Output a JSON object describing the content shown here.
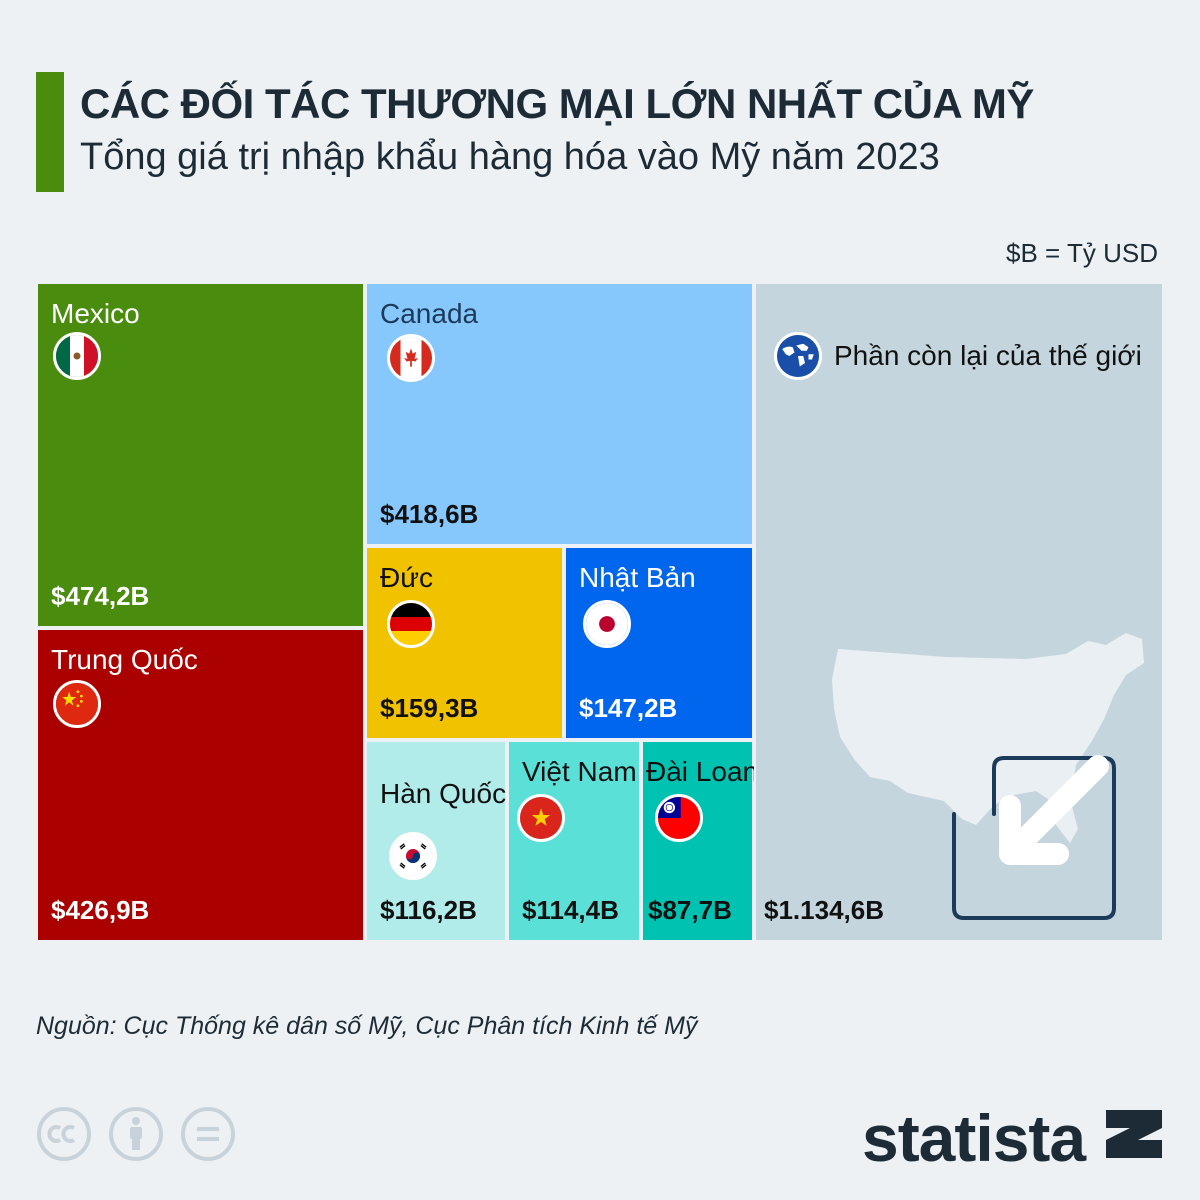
{
  "header": {
    "title": "CÁC ĐỐI TÁC THƯƠNG MẠI LỚN NHẤT CỦA MỸ",
    "subtitle": "Tổng giá trị nhập khẩu hàng hóa vào Mỹ năm 2023",
    "unit_note": "$B = Tỷ USD"
  },
  "chart_data": {
    "type": "treemap",
    "title": "CÁC ĐỐI TÁC THƯƠNG MẠI LỚN NHẤT CỦA MỸ",
    "subtitle": "Tổng giá trị nhập khẩu hàng hóa vào Mỹ năm 2023",
    "unit": "$B = Tỷ USD",
    "items": [
      {
        "name": "Mexico",
        "value": 474.2,
        "label": "$474,2B",
        "color": "#4a8c0e"
      },
      {
        "name": "Trung Quốc",
        "value": 426.9,
        "label": "$426,9B",
        "color": "#aa0000"
      },
      {
        "name": "Canada",
        "value": 418.6,
        "label": "$418,6B",
        "color": "#87c8fc"
      },
      {
        "name": "Đức",
        "value": 159.3,
        "label": "$159,3B",
        "color": "#f1c200"
      },
      {
        "name": "Nhật Bản",
        "value": 147.2,
        "label": "$147,2B",
        "color": "#0066ee"
      },
      {
        "name": "Hàn Quốc",
        "value": 116.2,
        "label": "$116,2B",
        "color": "#b2ecea"
      },
      {
        "name": "Việt Nam",
        "value": 114.4,
        "label": "$114,4B",
        "color": "#5be0d8"
      },
      {
        "name": "Đài Loan",
        "value": 87.7,
        "label": "$87,7B",
        "color": "#00c2b0"
      },
      {
        "name": "Phần còn lại của thế giới",
        "value": 1134.6,
        "label": "$1.134,6B",
        "color": "#c5d5dd"
      }
    ]
  },
  "source": "Nguồn: Cục Thống kê dân số Mỹ, Cục Phân tích Kinh tế Mỹ",
  "brand": "statista",
  "icons": [
    "cc-icon",
    "attribution-icon",
    "no-derivatives-icon",
    "statista-logo-icon",
    "world-globe-icon",
    "us-map-icon",
    "arrow-in-icon"
  ]
}
